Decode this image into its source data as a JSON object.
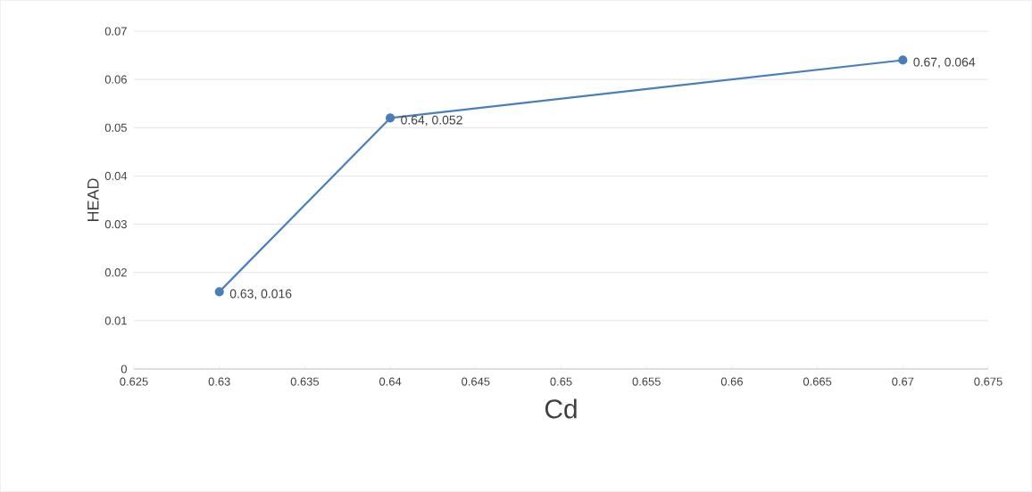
{
  "chart_data": {
    "type": "line",
    "xlabel": "Cd",
    "ylabel": "HEAD",
    "x": [
      0.63,
      0.64,
      0.67
    ],
    "values": [
      0.016,
      0.052,
      0.064
    ],
    "value_labels": [
      "0.63, 0.016",
      "0.64, 0.052",
      "0.67, 0.064"
    ],
    "color": "#4a7ebb",
    "xlim": [
      0.625,
      0.675
    ],
    "xticks": [
      0.625,
      0.63,
      0.635,
      0.64,
      0.645,
      0.65,
      0.655,
      0.66,
      0.665,
      0.67,
      0.675
    ],
    "ylim": [
      0,
      0.07
    ],
    "yticks": [
      0,
      0.01,
      0.02,
      0.03,
      0.04,
      0.05,
      0.06,
      0.07
    ],
    "grid": "y",
    "marker": "circle",
    "line_style": "solid"
  }
}
